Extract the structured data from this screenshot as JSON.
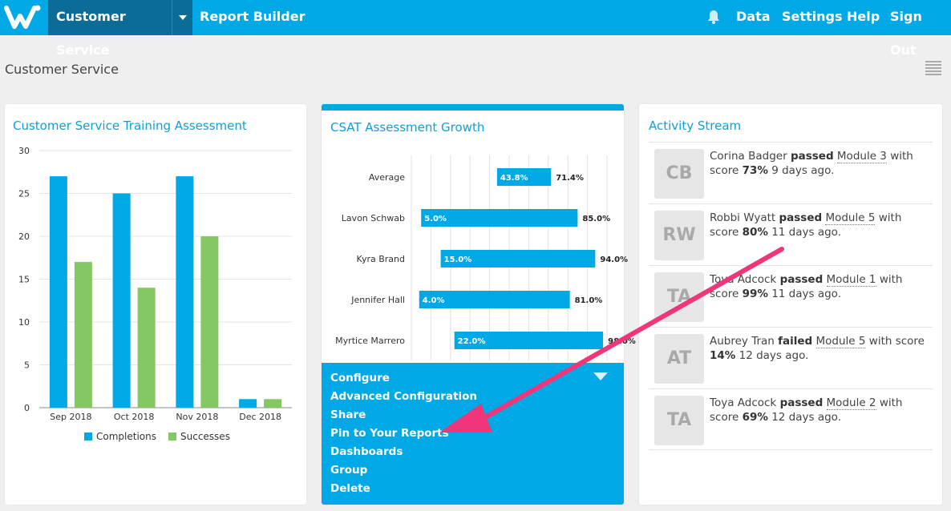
{
  "header": {
    "active_workspace": "Customer Service",
    "report_builder": "Report Builder",
    "data": "Data",
    "settings": "Settings",
    "help": "Help",
    "sign_out": "Sign Out"
  },
  "page": {
    "title": "Customer Service"
  },
  "training_card": {
    "title": "Customer Service Training Assessment",
    "chart_data": {
      "type": "bar",
      "categories": [
        "Sep 2018",
        "Oct 2018",
        "Nov 2018",
        "Dec 2018"
      ],
      "series": [
        {
          "name": "Completions",
          "values": [
            27,
            25,
            27,
            1
          ],
          "color": "#00a8e6"
        },
        {
          "name": "Successes",
          "values": [
            17,
            14,
            20,
            1
          ],
          "color": "#84c863"
        }
      ],
      "ylim": [
        0,
        30
      ],
      "yticks": [
        0,
        5,
        10,
        15,
        20,
        25,
        30
      ],
      "grid": true,
      "legend": "bottom"
    }
  },
  "csat_card": {
    "title": "CSAT Assessment Growth",
    "chart_data": {
      "type": "bar",
      "orientation": "horizontal-range",
      "categories": [
        "Average",
        "Lavon Schwab",
        "Kyra Brand",
        "Jennifer Hall",
        "Myrtice Marrero"
      ],
      "ranges": [
        {
          "start": 43.8,
          "end": 71.4,
          "start_label": "43.8%",
          "end_label": "71.4%"
        },
        {
          "start": 5.0,
          "end": 85.0,
          "start_label": "5.0%",
          "end_label": "85.0%"
        },
        {
          "start": 15.0,
          "end": 94.0,
          "start_label": "15.0%",
          "end_label": "94.0%"
        },
        {
          "start": 4.0,
          "end": 81.0,
          "start_label": "4.0%",
          "end_label": "81.0%"
        },
        {
          "start": 22.0,
          "end": 98.0,
          "start_label": "22.0%",
          "end_label": "98.0%"
        }
      ],
      "xlim": [
        0,
        100
      ],
      "grid": true,
      "color": "#00a8e6"
    },
    "menu": [
      "Configure",
      "Advanced Configuration",
      "Share",
      "Pin to Your Reports",
      "Dashboards",
      "Group",
      "Delete"
    ]
  },
  "activity": {
    "title": "Activity Stream",
    "items": [
      {
        "initials": "CB",
        "name": "Corina Badger",
        "verb": "passed",
        "module": "Module 3",
        "score_prefix": "with score",
        "score": "73%",
        "when": "9 days ago."
      },
      {
        "initials": "RW",
        "name": "Robbi Wyatt",
        "verb": "passed",
        "module": "Module 5",
        "score_prefix": "with score",
        "score": "80%",
        "when": "11 days ago."
      },
      {
        "initials": "TA",
        "name": "Toya Adcock",
        "verb": "passed",
        "module": "Module 1",
        "score_prefix": "with score",
        "score": "99%",
        "when": "11 days ago."
      },
      {
        "initials": "AT",
        "name": "Aubrey Tran",
        "verb": "failed",
        "module": "Module 5",
        "score_prefix": "with score",
        "score": "14%",
        "when": "12 days ago."
      },
      {
        "initials": "TA",
        "name": "Toya Adcock",
        "verb": "passed",
        "module": "Module 2",
        "score_prefix": "with score",
        "score": "69%",
        "when": "12 days ago."
      }
    ]
  },
  "annotation": {
    "arrow_color": "#f0357a"
  }
}
